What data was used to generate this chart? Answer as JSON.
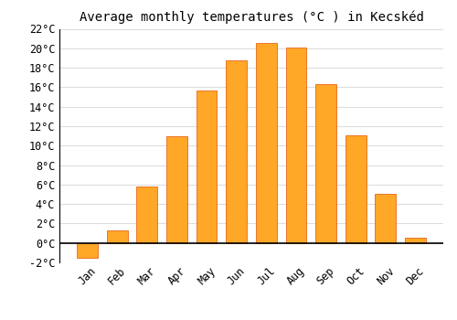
{
  "title": "Average monthly temperatures (°C ) in Kecskéd",
  "months": [
    "Jan",
    "Feb",
    "Mar",
    "Apr",
    "May",
    "Jun",
    "Jul",
    "Aug",
    "Sep",
    "Oct",
    "Nov",
    "Dec"
  ],
  "values": [
    -1.5,
    1.3,
    5.8,
    11.0,
    15.7,
    18.8,
    20.5,
    20.1,
    16.3,
    11.1,
    5.0,
    0.5
  ],
  "bar_color": "#FFA726",
  "bar_edge_color": "#E65100",
  "ylim": [
    -2,
    22
  ],
  "ytick_step": 2,
  "background_color": "#ffffff",
  "grid_color": "#dddddd",
  "title_fontsize": 10,
  "tick_fontsize": 8.5,
  "bar_width": 0.7
}
